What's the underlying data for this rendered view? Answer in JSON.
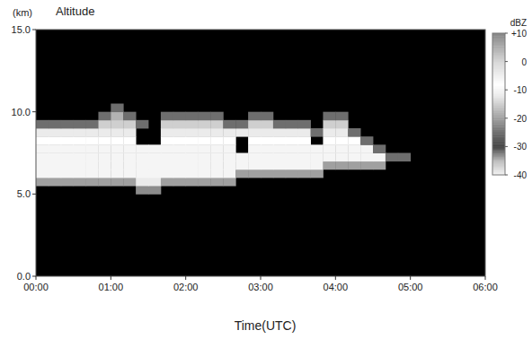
{
  "chart_data": {
    "type": "heatmap",
    "y_unit": "(km)",
    "y_label": "Altitude",
    "x_label": "Time(UTC)",
    "xlim": [
      0,
      360
    ],
    "xticks": [
      {
        "value": 0,
        "label": "00:00"
      },
      {
        "value": 60,
        "label": "01:00"
      },
      {
        "value": 120,
        "label": "02:00"
      },
      {
        "value": 180,
        "label": "03:00"
      },
      {
        "value": 240,
        "label": "04:00"
      },
      {
        "value": 300,
        "label": "05:00"
      },
      {
        "value": 360,
        "label": "06:00"
      }
    ],
    "ylim": [
      0,
      15
    ],
    "yticks": [
      {
        "value": 0,
        "label": "0.0"
      },
      {
        "value": 5,
        "label": "5.0"
      },
      {
        "value": 10,
        "label": "10.0"
      },
      {
        "value": 15,
        "label": "15.0"
      }
    ],
    "x_edges": [
      0,
      10,
      20,
      30,
      40,
      50,
      60,
      70,
      80,
      90,
      100,
      110,
      120,
      130,
      140,
      150,
      160,
      170,
      180,
      190,
      200,
      210,
      220,
      230,
      240,
      250,
      260,
      270,
      280,
      290,
      300
    ],
    "y_edges": [
      5,
      5.5,
      6,
      6.5,
      7,
      7.5,
      8,
      8.5,
      9,
      9.5,
      10,
      10.5,
      11
    ],
    "cells": [
      [
        null,
        null,
        null,
        null,
        null,
        null,
        null,
        null,
        -22,
        -22,
        null,
        null,
        null,
        null,
        null,
        null,
        null,
        null,
        null,
        null,
        null,
        null,
        null,
        null,
        null,
        null,
        null,
        null,
        null,
        null
      ],
      [
        -20,
        -20,
        -20,
        -20,
        -20,
        -20,
        -20,
        -20,
        -12,
        -12,
        -20,
        -20,
        -20,
        -20,
        -20,
        -20,
        null,
        null,
        null,
        null,
        null,
        null,
        null,
        null,
        null,
        null,
        null,
        null,
        null,
        null
      ],
      [
        -10,
        -10,
        -10,
        -10,
        -10,
        -10,
        -10,
        -10,
        -10,
        -10,
        -10,
        -10,
        -10,
        -10,
        -10,
        -10,
        -20,
        -20,
        -20,
        -20,
        -20,
        -20,
        -20,
        null,
        null,
        null,
        null,
        null,
        null,
        null
      ],
      [
        -10,
        -10,
        -10,
        -10,
        -10,
        -10,
        -10,
        -10,
        -10,
        -10,
        -10,
        -10,
        -10,
        -10,
        -10,
        -10,
        -10,
        -10,
        -10,
        -10,
        -10,
        -10,
        -10,
        -20,
        -20,
        -20,
        -20,
        -20,
        null,
        null
      ],
      [
        -10,
        -10,
        -10,
        -10,
        -10,
        -10,
        -10,
        -10,
        -10,
        -10,
        -10,
        -10,
        -10,
        -10,
        -10,
        -10,
        -10,
        -10,
        -10,
        -10,
        -10,
        -10,
        -10,
        -10,
        -10,
        -10,
        -10,
        -10,
        -25,
        -25
      ],
      [
        -10,
        -10,
        -10,
        -10,
        -10,
        -10,
        -10,
        -10,
        -10,
        -10,
        -10,
        -10,
        -10,
        -10,
        -10,
        -10,
        null,
        -10,
        -10,
        -10,
        -10,
        -10,
        -10,
        -10,
        -10,
        -10,
        -10,
        -25,
        null,
        null
      ],
      [
        -8,
        -8,
        -8,
        -8,
        -8,
        -8,
        -8,
        -8,
        null,
        null,
        -8,
        -8,
        -8,
        -8,
        -8,
        -8,
        null,
        -8,
        -8,
        -8,
        -8,
        -8,
        null,
        -8,
        -8,
        -8,
        -25,
        null,
        null,
        null
      ],
      [
        -12,
        -12,
        -12,
        -12,
        -12,
        -12,
        -12,
        -12,
        null,
        null,
        -12,
        -12,
        -12,
        -12,
        -12,
        -12,
        -12,
        -12,
        -12,
        -12,
        -12,
        -12,
        -25,
        -12,
        -12,
        -25,
        null,
        null,
        null,
        null
      ],
      [
        -25,
        -25,
        -25,
        -25,
        -25,
        -15,
        -15,
        -15,
        -25,
        null,
        -15,
        -15,
        -15,
        -15,
        -15,
        -25,
        -25,
        -15,
        -15,
        -25,
        -25,
        -25,
        null,
        -15,
        -15,
        null,
        null,
        null,
        null,
        null
      ],
      [
        null,
        null,
        null,
        null,
        null,
        -25,
        -18,
        -25,
        null,
        null,
        -25,
        -25,
        -25,
        -25,
        -25,
        null,
        null,
        -25,
        -25,
        null,
        null,
        null,
        null,
        -25,
        -25,
        null,
        null,
        null,
        null,
        null
      ],
      [
        null,
        null,
        null,
        null,
        null,
        null,
        -25,
        null,
        null,
        null,
        null,
        null,
        null,
        null,
        null,
        null,
        null,
        null,
        null,
        null,
        null,
        null,
        null,
        null,
        null,
        null,
        null,
        null,
        null,
        null
      ],
      [
        null,
        null,
        null,
        null,
        null,
        null,
        null,
        null,
        null,
        null,
        null,
        null,
        null,
        null,
        null,
        null,
        null,
        null,
        null,
        null,
        null,
        null,
        null,
        null,
        null,
        null,
        null,
        null,
        null,
        null
      ]
    ],
    "colorbar": {
      "label": "dBZ",
      "lim": [
        -40,
        10
      ],
      "ticks": [
        {
          "value": 10,
          "label": "+10"
        },
        0,
        -10,
        -20,
        -30,
        -40
      ]
    }
  }
}
